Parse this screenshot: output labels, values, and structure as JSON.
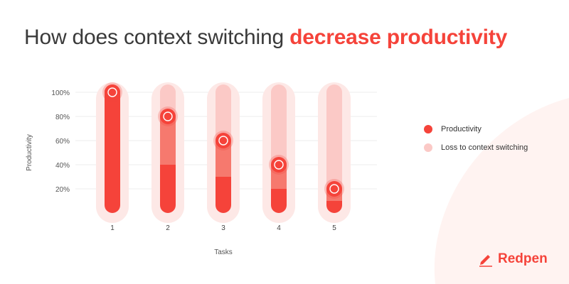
{
  "title": {
    "prefix": "How does context switching ",
    "highlight": "decrease productivity"
  },
  "brand": {
    "name": "Redpen",
    "icon": "pen-icon"
  },
  "colors": {
    "accent": "#f5433a",
    "loss": "#fbc9c6",
    "halo": "#fde8e6",
    "mid": "#f6796e",
    "corner": "#fff3f1",
    "text": "#3a3a3a"
  },
  "legend": [
    {
      "label": "Productivity",
      "color": "#f5433a"
    },
    {
      "label": "Loss to context switching",
      "color": "#fbc9c6"
    }
  ],
  "chart_data": {
    "type": "bar",
    "categories": [
      "1",
      "2",
      "3",
      "4",
      "5"
    ],
    "series": [
      {
        "name": "Productivity",
        "values": [
          100,
          80,
          60,
          40,
          20
        ]
      },
      {
        "name": "Loss to context switching",
        "values": [
          0,
          20,
          40,
          60,
          80
        ]
      }
    ],
    "xlabel": "Tasks",
    "ylabel": "Productivity",
    "yticks": [
      "20%",
      "40%",
      "60%",
      "80%",
      "100%"
    ],
    "ylim": [
      0,
      100
    ]
  }
}
